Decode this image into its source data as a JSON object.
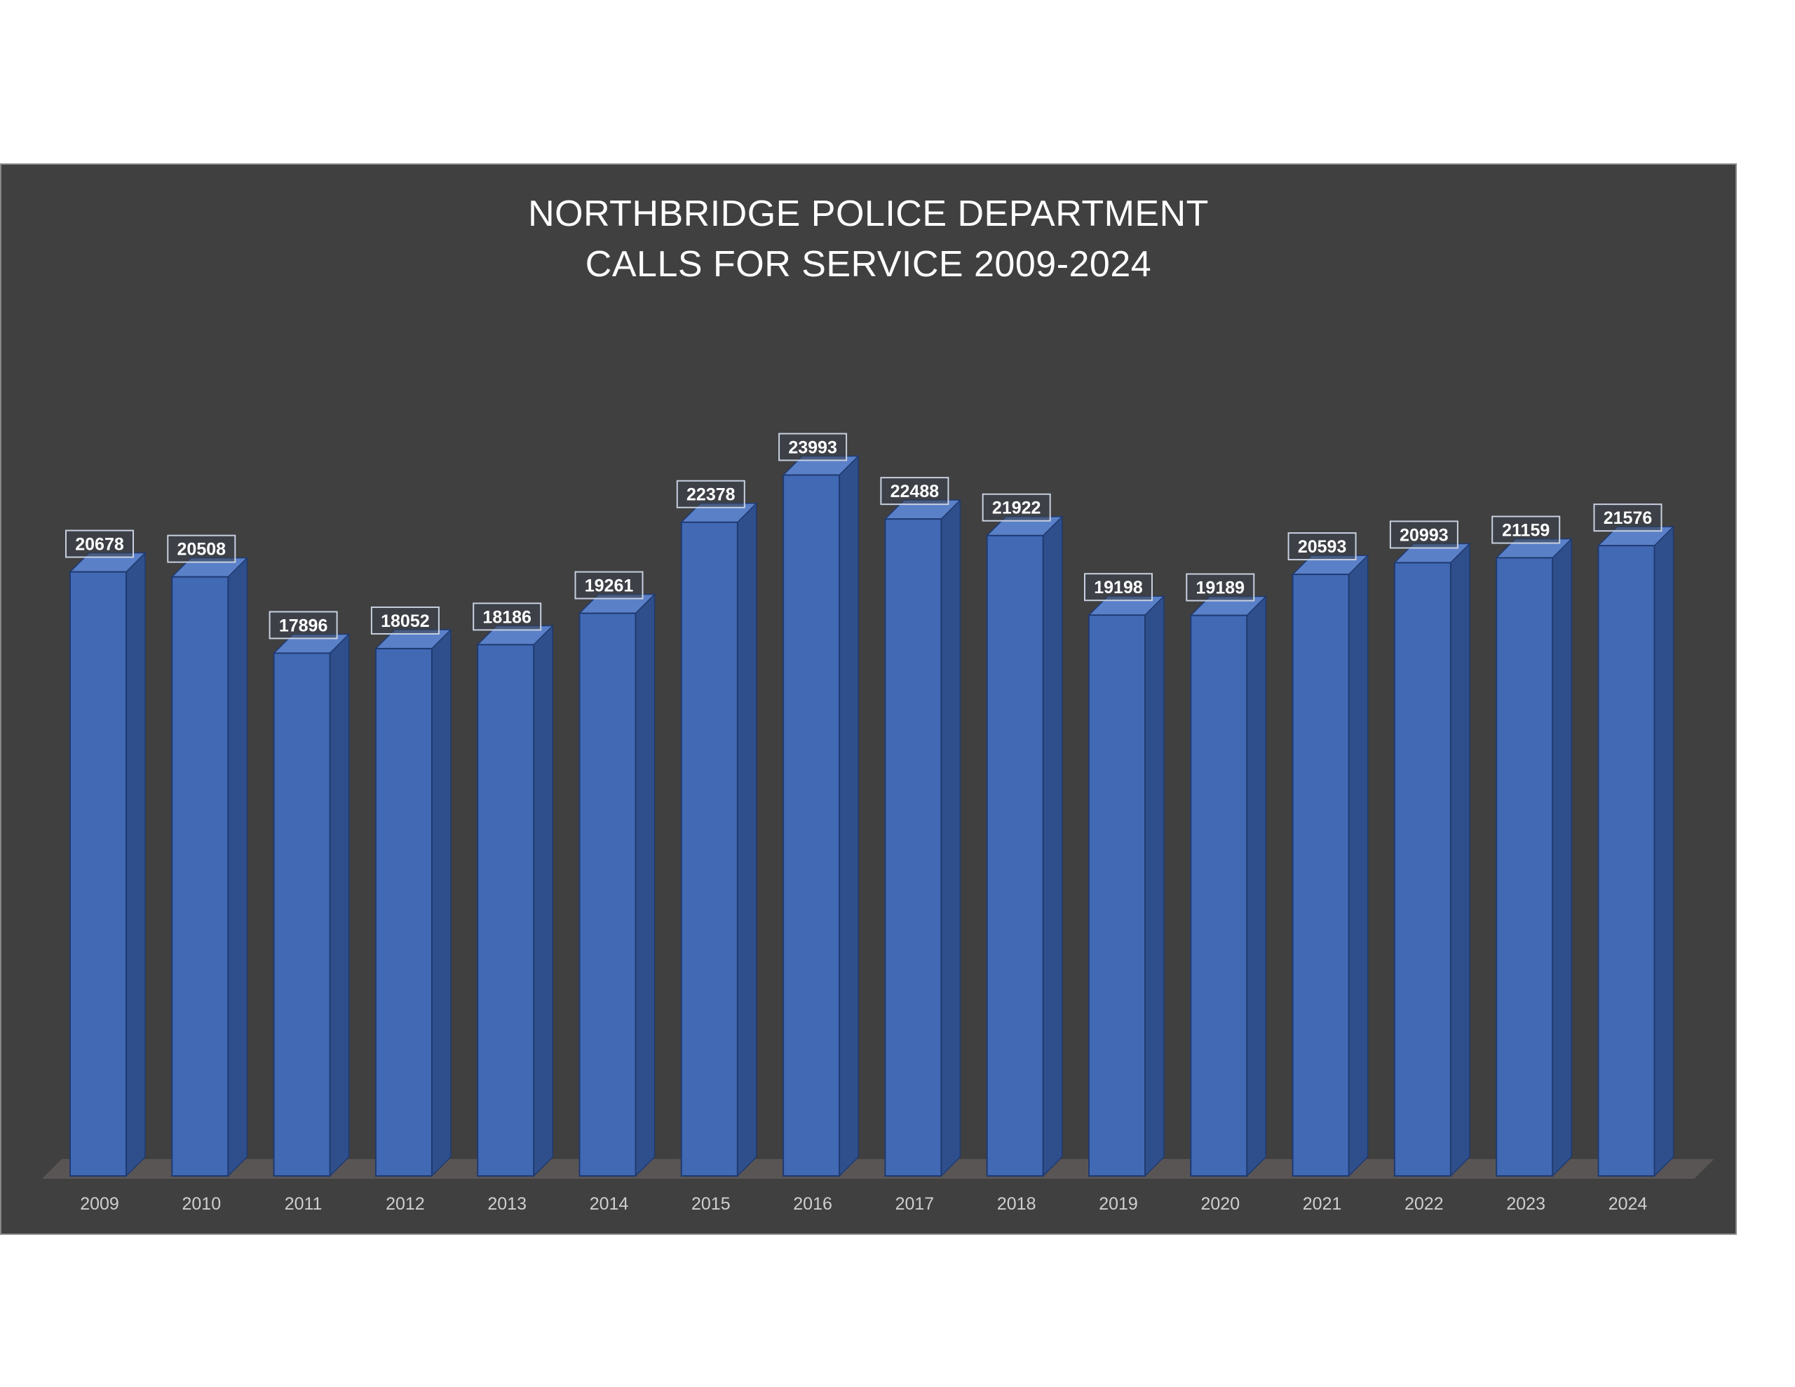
{
  "chart_data": {
    "type": "bar",
    "title": "NORTHBRIDGE POLICE DEPARTMENT",
    "subtitle": "CALLS FOR SERVICE 2009-2024",
    "xlabel": "",
    "ylabel": "",
    "categories": [
      "2009",
      "2010",
      "2011",
      "2012",
      "2013",
      "2014",
      "2015",
      "2016",
      "2017",
      "2018",
      "2019",
      "2020",
      "2021",
      "2022",
      "2023",
      "2024"
    ],
    "values": [
      20678,
      20508,
      17896,
      18052,
      18186,
      19261,
      22378,
      23993,
      22488,
      21922,
      19198,
      19189,
      20593,
      20993,
      21159,
      21576
    ],
    "ylim": [
      0,
      24000
    ],
    "grid": false,
    "legend": "none",
    "data_labels": true,
    "style": "3d-column"
  },
  "colors": {
    "background": "#404040",
    "bar_front": "#4169b4",
    "bar_side": "#2f4f8c",
    "bar_top": "#5a80c8",
    "floor": "#5a5555",
    "label_border": "#c8d0e0",
    "title": "#ffffff"
  }
}
